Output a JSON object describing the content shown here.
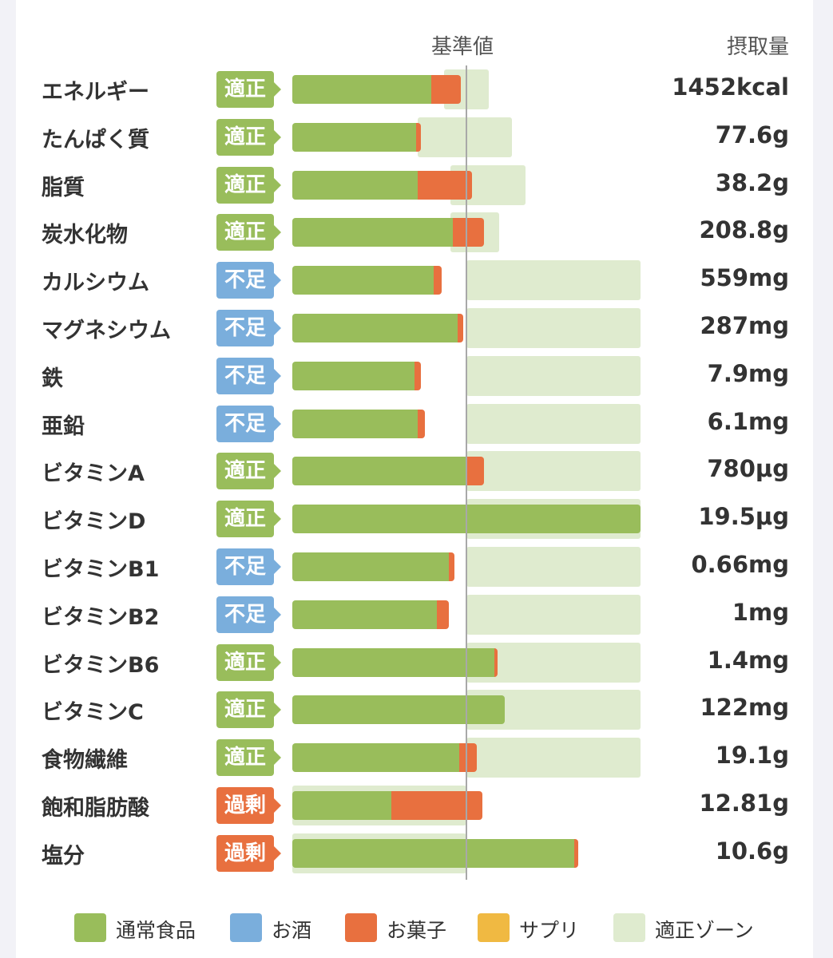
{
  "headers": {
    "baseline": "基準値",
    "intake": "摂取量"
  },
  "colors": {
    "通常食品": "#99bd5b",
    "お酒": "#7aaedc",
    "お菓子": "#e8703f",
    "サプリ": "#f0b942",
    "適正ゾーン": "#dfebcf",
    "適正": "#99bd5b",
    "不足": "#7aaedc",
    "過剰": "#e8703f"
  },
  "chart_data": {
    "type": "bar",
    "orientation": "horizontal",
    "stacked": true,
    "baseline_label": "基準値",
    "value_unit_note": "",
    "categories": [
      "エネルギー",
      "たんぱく質",
      "脂質",
      "炭水化物",
      "カルシウム",
      "マグネシウム",
      "鉄",
      "亜鉛",
      "ビタミンA",
      "ビタミンD",
      "ビタミンB1",
      "ビタミンB2",
      "ビタミンB6",
      "ビタミンC",
      "食物繊維",
      "飽和脂肪酸",
      "塩分"
    ],
    "status": [
      "適正",
      "適正",
      "適正",
      "適正",
      "不足",
      "不足",
      "不足",
      "不足",
      "適正",
      "適正",
      "不足",
      "不足",
      "適正",
      "適正",
      "適正",
      "過剰",
      "過剰"
    ],
    "intake": [
      "1452kcal",
      "77.6g",
      "38.2g",
      "208.8g",
      "559mg",
      "287mg",
      "7.9mg",
      "6.1mg",
      "780μg",
      "19.5μg",
      "0.66mg",
      "1mg",
      "1.4mg",
      "122mg",
      "19.1g",
      "12.81g",
      "10.6g"
    ],
    "series": [
      {
        "name": "通常食品",
        "values": [
          80,
          71,
          72,
          92,
          81,
          95,
          70,
          72,
          100,
          200,
          90,
          83,
          116,
          122,
          96,
          57,
          162
        ]
      },
      {
        "name": "お酒",
        "values": [
          0,
          0,
          0,
          0,
          0,
          0,
          0,
          0,
          0,
          0,
          0,
          0,
          0,
          0,
          0,
          0,
          0
        ]
      },
      {
        "name": "お菓子",
        "values": [
          17,
          3,
          31,
          18,
          5,
          3,
          4,
          4,
          10,
          0,
          3,
          7,
          2,
          0,
          10,
          52,
          2
        ]
      },
      {
        "name": "サプリ",
        "values": [
          0,
          0,
          0,
          0,
          0,
          0,
          0,
          0,
          0,
          0,
          0,
          0,
          0,
          0,
          0,
          0,
          0
        ]
      }
    ],
    "optimal_zone": [
      [
        87,
        113
      ],
      [
        72,
        126
      ],
      [
        91,
        134
      ],
      [
        91,
        119
      ],
      [
        100,
        200
      ],
      [
        100,
        200
      ],
      [
        100,
        200
      ],
      [
        100,
        200
      ],
      [
        100,
        200
      ],
      [
        100,
        200
      ],
      [
        100,
        200
      ],
      [
        100,
        200
      ],
      [
        100,
        200
      ],
      [
        100,
        200
      ],
      [
        100,
        200
      ],
      [
        0,
        100
      ],
      [
        0,
        100
      ]
    ],
    "xlim": [
      0,
      200
    ],
    "legend": [
      "通常食品",
      "お酒",
      "お菓子",
      "サプリ",
      "適正ゾーン"
    ],
    "legend_position": "bottom"
  }
}
